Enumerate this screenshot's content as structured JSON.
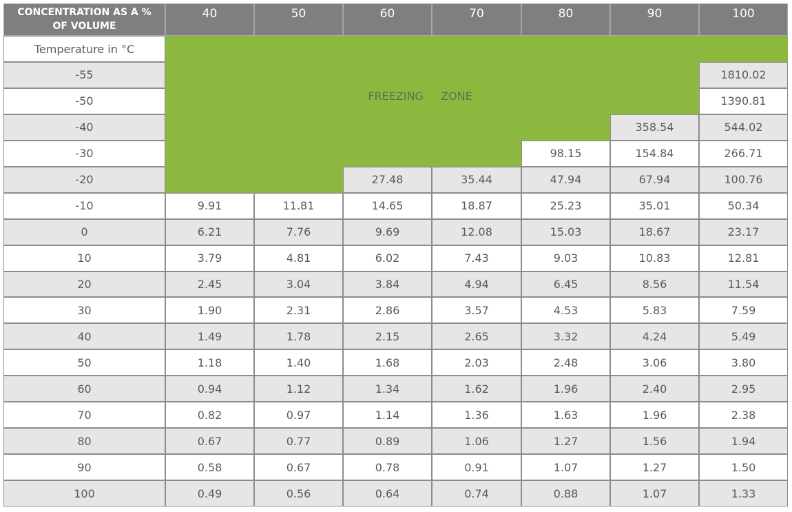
{
  "table": {
    "corner": "CONCENTRATION AS A % OF VOLUME",
    "row_header_label": "Temperature in °C",
    "columns": [
      "40",
      "50",
      "60",
      "70",
      "80",
      "90",
      "100"
    ],
    "freezing_label": "FREEZING ZONE",
    "rows": [
      {
        "temp": "-55",
        "values": [
          null,
          null,
          null,
          null,
          null,
          null,
          "1810.02"
        ]
      },
      {
        "temp": "-50",
        "values": [
          null,
          null,
          null,
          null,
          null,
          null,
          "1390.81"
        ]
      },
      {
        "temp": "-40",
        "values": [
          null,
          null,
          null,
          null,
          null,
          "358.54",
          "544.02"
        ]
      },
      {
        "temp": "-30",
        "values": [
          null,
          null,
          null,
          null,
          "98.15",
          "154.84",
          "266.71"
        ]
      },
      {
        "temp": "-20",
        "values": [
          null,
          null,
          "27.48",
          "35.44",
          "47.94",
          "67.94",
          "100.76"
        ]
      },
      {
        "temp": "-10",
        "values": [
          "9.91",
          "11.81",
          "14.65",
          "18.87",
          "25.23",
          "35.01",
          "50.34"
        ]
      },
      {
        "temp": "0",
        "values": [
          "6.21",
          "7.76",
          "9.69",
          "12.08",
          "15.03",
          "18.67",
          "23.17"
        ]
      },
      {
        "temp": "10",
        "values": [
          "3.79",
          "4.81",
          "6.02",
          "7.43",
          "9.03",
          "10.83",
          "12.81"
        ]
      },
      {
        "temp": "20",
        "values": [
          "2.45",
          "3.04",
          "3.84",
          "4.94",
          "6.45",
          "8.56",
          "11.54"
        ]
      },
      {
        "temp": "30",
        "values": [
          "1.90",
          "2.31",
          "2.86",
          "3.57",
          "4.53",
          "5.83",
          "7.59"
        ]
      },
      {
        "temp": "40",
        "values": [
          "1.49",
          "1.78",
          "2.15",
          "2.65",
          "3.32",
          "4.24",
          "5.49"
        ]
      },
      {
        "temp": "50",
        "values": [
          "1.18",
          "1.40",
          "1.68",
          "2.03",
          "2.48",
          "3.06",
          "3.80"
        ]
      },
      {
        "temp": "60",
        "values": [
          "0.94",
          "1.12",
          "1.34",
          "1.62",
          "1.96",
          "2.40",
          "2.95"
        ]
      },
      {
        "temp": "70",
        "values": [
          "0.82",
          "0.97",
          "1.14",
          "1.36",
          "1.63",
          "1.96",
          "2.38"
        ]
      },
      {
        "temp": "80",
        "values": [
          "0.67",
          "0.77",
          "0.89",
          "1.06",
          "1.27",
          "1.56",
          "1.94"
        ]
      },
      {
        "temp": "90",
        "values": [
          "0.58",
          "0.67",
          "0.78",
          "0.91",
          "1.07",
          "1.27",
          "1.50"
        ]
      },
      {
        "temp": "100",
        "values": [
          "0.49",
          "0.56",
          "0.64",
          "0.74",
          "0.88",
          "1.07",
          "1.33"
        ]
      }
    ]
  }
}
